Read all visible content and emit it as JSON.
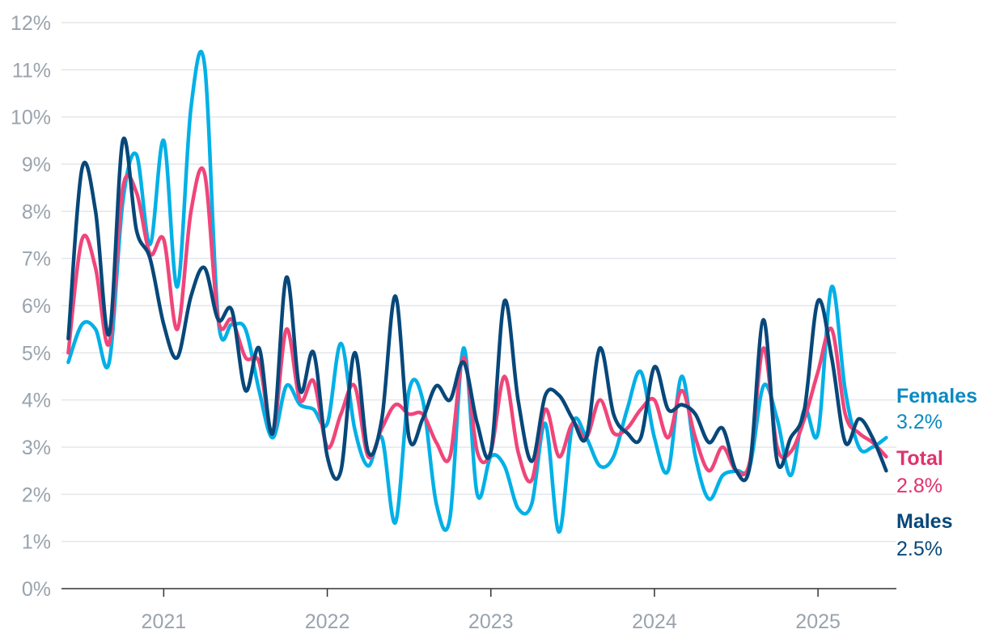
{
  "chart_data": {
    "type": "line",
    "title": "",
    "xlabel": "",
    "ylabel": "",
    "ylim": [
      0,
      12
    ],
    "y_ticks": [
      0,
      1,
      2,
      3,
      4,
      5,
      6,
      7,
      8,
      9,
      10,
      11,
      12
    ],
    "y_tick_labels": [
      "0%",
      "1%",
      "2%",
      "3%",
      "4%",
      "5%",
      "6%",
      "7%",
      "8%",
      "9%",
      "10%",
      "11%",
      "12%"
    ],
    "x_ticks": [
      "2021-01",
      "2022-01",
      "2023-01",
      "2024-01",
      "2025-01"
    ],
    "x_tick_labels": [
      "2021",
      "2022",
      "2023",
      "2024",
      "2025"
    ],
    "grid": true,
    "legend": "direct labels at right end of lines",
    "x": [
      "2020-06",
      "2020-07",
      "2020-08",
      "2020-09",
      "2020-10",
      "2020-11",
      "2020-12",
      "2021-01",
      "2021-02",
      "2021-03",
      "2021-04",
      "2021-05",
      "2021-06",
      "2021-07",
      "2021-08",
      "2021-09",
      "2021-10",
      "2021-11",
      "2021-12",
      "2022-01",
      "2022-02",
      "2022-03",
      "2022-04",
      "2022-05",
      "2022-06",
      "2022-07",
      "2022-08",
      "2022-09",
      "2022-10",
      "2022-11",
      "2022-12",
      "2023-01",
      "2023-02",
      "2023-03",
      "2023-04",
      "2023-05",
      "2023-06",
      "2023-07",
      "2023-08",
      "2023-09",
      "2023-10",
      "2023-11",
      "2023-12",
      "2024-01",
      "2024-02",
      "2024-03",
      "2024-04",
      "2024-05",
      "2024-06",
      "2024-07",
      "2024-08",
      "2024-09",
      "2024-10",
      "2024-11",
      "2024-12",
      "2025-01",
      "2025-02",
      "2025-03",
      "2025-04",
      "2025-05",
      "2025-06"
    ],
    "series": [
      {
        "name": "Females",
        "color": "#00b0e6",
        "label_color": "#0a8ac2",
        "end_label": "3.2%",
        "values": [
          4.8,
          5.6,
          5.5,
          4.8,
          8.2,
          9.2,
          7.3,
          9.5,
          6.4,
          10.2,
          11.1,
          5.7,
          5.6,
          5.5,
          4.2,
          3.2,
          4.3,
          3.9,
          3.8,
          3.5,
          5.2,
          3.4,
          2.6,
          3.2,
          1.4,
          4.2,
          4.0,
          1.8,
          1.5,
          5.1,
          2.0,
          2.8,
          2.6,
          1.7,
          1.8,
          3.5,
          1.2,
          3.5,
          3.2,
          2.6,
          2.8,
          3.8,
          4.6,
          3.2,
          2.5,
          4.5,
          2.8,
          1.9,
          2.4,
          2.5,
          2.6,
          4.3,
          3.6,
          2.4,
          3.8,
          3.3,
          6.4,
          4.2,
          3.0,
          3.0,
          3.2
        ]
      },
      {
        "name": "Total",
        "color": "#f0457a",
        "label_color": "#e0326c",
        "end_label": "2.8%",
        "values": [
          5.0,
          7.4,
          6.8,
          5.2,
          8.5,
          8.4,
          7.1,
          7.4,
          5.5,
          8.0,
          8.8,
          5.7,
          5.7,
          4.9,
          4.8,
          3.3,
          5.5,
          4.0,
          4.4,
          3.0,
          3.7,
          4.3,
          2.8,
          3.4,
          3.9,
          3.7,
          3.7,
          3.1,
          2.8,
          4.9,
          2.9,
          2.9,
          4.5,
          2.9,
          2.3,
          3.8,
          2.8,
          3.5,
          3.2,
          4.0,
          3.3,
          3.4,
          3.8,
          4.0,
          3.2,
          4.2,
          3.2,
          2.5,
          3.0,
          2.5,
          2.7,
          5.1,
          3.0,
          2.9,
          3.6,
          4.6,
          5.5,
          3.7,
          3.3,
          3.1,
          2.8
        ]
      },
      {
        "name": "Males",
        "color": "#07487a",
        "label_color": "#07487a",
        "end_label": "2.5%",
        "values": [
          5.3,
          8.9,
          8.0,
          5.4,
          9.5,
          7.6,
          7.0,
          5.6,
          4.9,
          6.2,
          6.8,
          5.7,
          5.9,
          4.2,
          5.1,
          3.3,
          6.6,
          4.2,
          5.0,
          2.8,
          2.5,
          5.0,
          2.9,
          3.6,
          6.2,
          3.2,
          3.6,
          4.3,
          4.0,
          4.8,
          3.5,
          2.9,
          6.1,
          4.0,
          2.7,
          4.1,
          4.1,
          3.6,
          3.2,
          5.1,
          3.7,
          3.3,
          3.2,
          4.7,
          3.8,
          3.9,
          3.7,
          3.1,
          3.4,
          2.5,
          2.6,
          5.7,
          2.7,
          3.2,
          3.8,
          6.1,
          4.9,
          3.1,
          3.6,
          3.2,
          2.5
        ]
      }
    ]
  }
}
